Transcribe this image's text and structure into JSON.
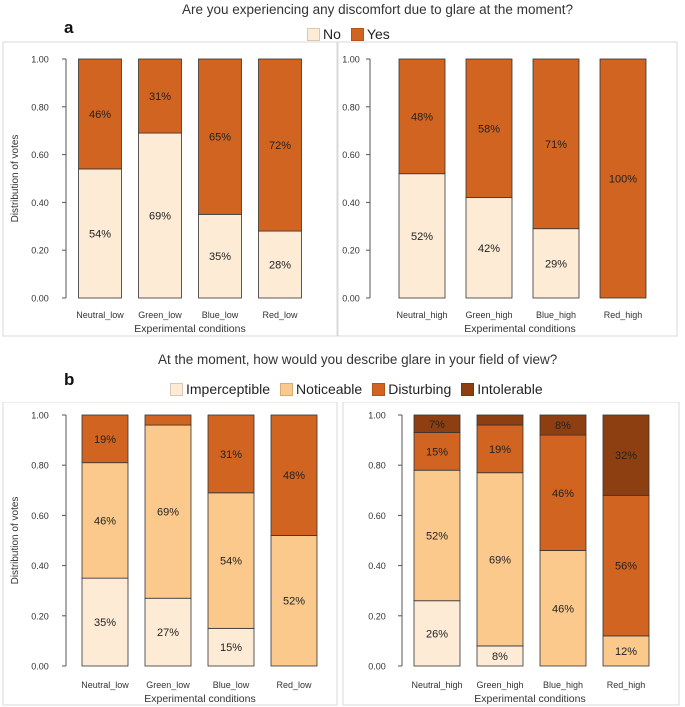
{
  "panel_a": {
    "letter": "a",
    "title": "Are you experiencing any discomfort due to glare at the moment?",
    "legend": [
      {
        "label": "No",
        "color": "#fdebd6"
      },
      {
        "label": "Yes",
        "color": "#d06420"
      }
    ]
  },
  "panel_b": {
    "letter": "b",
    "title": "At the moment, how would you describe glare in your field of view?",
    "legend": [
      {
        "label": "Imperceptible",
        "color": "#fdebd6"
      },
      {
        "label": "Noticeable",
        "color": "#fbc98b"
      },
      {
        "label": "Disturbing",
        "color": "#d06420"
      },
      {
        "label": "Intolerable",
        "color": "#8e3f12"
      }
    ]
  },
  "chart_data": [
    {
      "type": "bar",
      "stacked": true,
      "panel": "a",
      "title": "Are you experiencing any discomfort due to glare at the moment?",
      "categories": [
        "Neutral_low",
        "Green_low",
        "Blue_low",
        "Red_low"
      ],
      "series": [
        {
          "name": "No",
          "color": "#fdebd6",
          "values": [
            0.54,
            0.69,
            0.35,
            0.28
          ],
          "labels": [
            "54%",
            "69%",
            "35%",
            "28%"
          ]
        },
        {
          "name": "Yes",
          "color": "#d06420",
          "values": [
            0.46,
            0.31,
            0.65,
            0.72
          ],
          "labels": [
            "46%",
            "31%",
            "65%",
            "72%"
          ]
        }
      ],
      "xlabel": "Experimental conditions",
      "ylabel": "Distribution of votes",
      "yticks": [
        "0.00",
        "0.20",
        "0.40",
        "0.60",
        "0.80",
        "1.00"
      ],
      "ylim": [
        0,
        1
      ]
    },
    {
      "type": "bar",
      "stacked": true,
      "panel": "a",
      "categories": [
        "Neutral_high",
        "Green_high",
        "Blue_high",
        "Red_high"
      ],
      "series": [
        {
          "name": "No",
          "color": "#fdebd6",
          "values": [
            0.52,
            0.42,
            0.29,
            0.0
          ],
          "labels": [
            "52%",
            "42%",
            "29%",
            ""
          ]
        },
        {
          "name": "Yes",
          "color": "#d06420",
          "values": [
            0.48,
            0.58,
            0.71,
            1.0
          ],
          "labels": [
            "48%",
            "58%",
            "71%",
            "100%"
          ]
        }
      ],
      "xlabel": "Experimental conditions",
      "ylabel": "",
      "yticks": [
        "0.00",
        "0.20",
        "0.40",
        "0.60",
        "0.80",
        "1.00"
      ],
      "ylim": [
        0,
        1
      ]
    },
    {
      "type": "bar",
      "stacked": true,
      "panel": "b",
      "title": "At the moment, how would you describe glare in your field of view?",
      "categories": [
        "Neutral_low",
        "Green_low",
        "Blue_low",
        "Red_low"
      ],
      "series": [
        {
          "name": "Imperceptible",
          "color": "#fdebd6",
          "values": [
            0.35,
            0.27,
            0.15,
            0.0
          ],
          "labels": [
            "35%",
            "27%",
            "15%",
            ""
          ]
        },
        {
          "name": "Noticeable",
          "color": "#fbc98b",
          "values": [
            0.46,
            0.69,
            0.54,
            0.52
          ],
          "labels": [
            "46%",
            "69%",
            "54%",
            "52%"
          ]
        },
        {
          "name": "Disturbing",
          "color": "#d06420",
          "values": [
            0.19,
            0.04,
            0.31,
            0.48
          ],
          "labels": [
            "19%",
            "",
            "31%",
            "48%"
          ]
        },
        {
          "name": "Intolerable",
          "color": "#8e3f12",
          "values": [
            0.0,
            0.0,
            0.0,
            0.0
          ],
          "labels": [
            "",
            "",
            "",
            ""
          ]
        }
      ],
      "xlabel": "Experimental conditions",
      "ylabel": "Distribution of votes",
      "yticks": [
        "0.00",
        "0.20",
        "0.40",
        "0.60",
        "0.80",
        "1.00"
      ],
      "ylim": [
        0,
        1
      ]
    },
    {
      "type": "bar",
      "stacked": true,
      "panel": "b",
      "categories": [
        "Neutral_high",
        "Green_high",
        "Blue_high",
        "Red_high"
      ],
      "series": [
        {
          "name": "Imperceptible",
          "color": "#fdebd6",
          "values": [
            0.26,
            0.08,
            0.0,
            0.0
          ],
          "labels": [
            "26%",
            "8%",
            "",
            ""
          ]
        },
        {
          "name": "Noticeable",
          "color": "#fbc98b",
          "values": [
            0.52,
            0.69,
            0.46,
            0.12
          ],
          "labels": [
            "52%",
            "69%",
            "46%",
            "12%"
          ]
        },
        {
          "name": "Disturbing",
          "color": "#d06420",
          "values": [
            0.15,
            0.19,
            0.46,
            0.56
          ],
          "labels": [
            "15%",
            "19%",
            "46%",
            "56%"
          ]
        },
        {
          "name": "Intolerable",
          "color": "#8e3f12",
          "values": [
            0.07,
            0.04,
            0.08,
            0.32
          ],
          "labels": [
            "7%",
            "",
            "8%",
            "32%"
          ]
        }
      ],
      "xlabel": "Experimental conditions",
      "ylabel": "",
      "yticks": [
        "0.00",
        "0.20",
        "0.40",
        "0.60",
        "0.80",
        "1.00"
      ],
      "ylim": [
        0,
        1
      ]
    }
  ]
}
